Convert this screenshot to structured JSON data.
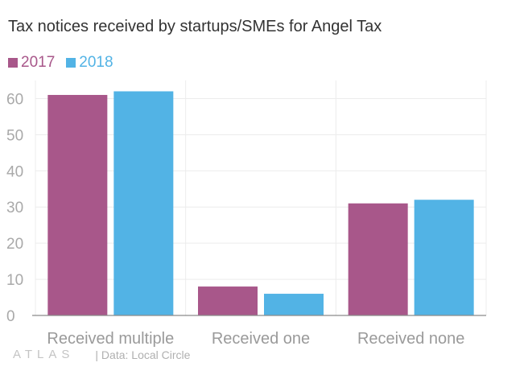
{
  "chart_data": {
    "type": "bar",
    "title": "Tax notices received by startups/SMEs for Angel Tax",
    "categories": [
      "Received multiple",
      "Received one",
      "Received none"
    ],
    "series": [
      {
        "name": "2017",
        "values": [
          61,
          8,
          31
        ],
        "color": "#a8578a"
      },
      {
        "name": "2018",
        "values": [
          62,
          6,
          32
        ],
        "color": "#52b3e5"
      }
    ],
    "ylim": [
      0,
      65
    ],
    "yticks": [
      0,
      10,
      20,
      30,
      40,
      50,
      60
    ],
    "grid": true,
    "legend_position": "top-left"
  },
  "footer": {
    "logo": "ATLAS",
    "source": "| Data: Local Circle"
  }
}
